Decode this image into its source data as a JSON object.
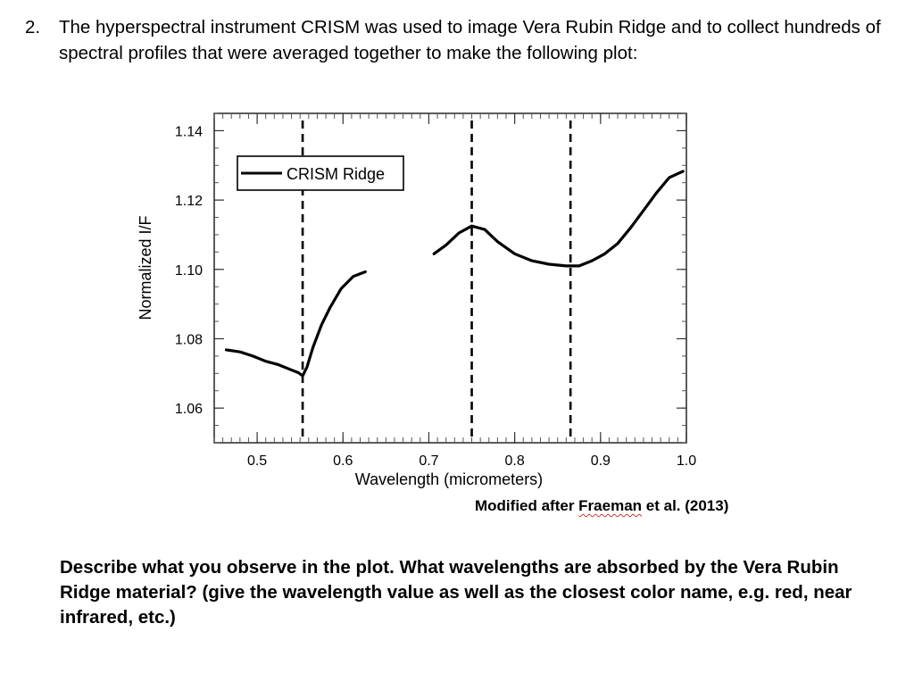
{
  "question": {
    "number": "2.",
    "text": "The hyperspectral instrument CRISM was used to image Vera Rubin Ridge and to collect hundreds of spectral profiles that were averaged together to make the following plot:"
  },
  "chart_data": {
    "type": "line",
    "xlabel": "Wavelength (micrometers)",
    "ylabel": "Normalized I/F",
    "xlim": [
      0.45,
      1.0
    ],
    "ylim": [
      1.05,
      1.145
    ],
    "x_ticks": [
      0.5,
      0.6,
      0.7,
      0.8,
      0.9,
      1.0
    ],
    "x_tick_labels": [
      "0.5",
      "0.6",
      "0.7",
      "0.8",
      "0.9",
      "1.0"
    ],
    "y_ticks": [
      1.06,
      1.08,
      1.1,
      1.12,
      1.14
    ],
    "y_tick_labels": [
      "1.06",
      "1.08",
      "1.10",
      "1.12",
      "1.14"
    ],
    "legend": {
      "entries": [
        "CRISM Ridge"
      ],
      "position": "top-left"
    },
    "grid": false,
    "vertical_dashed_lines": [
      0.553,
      0.75,
      0.865
    ],
    "series": [
      {
        "name": "CRISM Ridge",
        "color": "#000000",
        "segments": [
          {
            "x": [
              0.464,
              0.48,
              0.495,
              0.51,
              0.525,
              0.538,
              0.548,
              0.553,
              0.558,
              0.565,
              0.575,
              0.585,
              0.598,
              0.612,
              0.626
            ],
            "y": [
              1.0768,
              1.0762,
              1.075,
              1.0735,
              1.0725,
              1.0712,
              1.0702,
              1.0693,
              1.0718,
              1.0775,
              1.084,
              1.089,
              1.0945,
              1.098,
              1.0993
            ]
          },
          {
            "x": [
              0.706,
              0.72,
              0.735,
              0.75,
              0.765,
              0.78,
              0.8,
              0.82,
              0.84,
              0.86,
              0.875,
              0.89,
              0.905,
              0.92,
              0.935,
              0.95,
              0.965,
              0.98,
              0.996
            ],
            "y": [
              1.1045,
              1.107,
              1.1105,
              1.1125,
              1.1115,
              1.108,
              1.1045,
              1.1025,
              1.1015,
              1.101,
              1.101,
              1.1025,
              1.1045,
              1.1075,
              1.112,
              1.117,
              1.122,
              1.1265,
              1.1283
            ]
          }
        ]
      }
    ]
  },
  "caption": {
    "prefix": "Modified after ",
    "author": "Fraeman",
    "suffix": " et al. (2013)"
  },
  "prompt": "Describe what you observe in the plot. What wavelengths are absorbed by the Vera Rubin Ridge material? (give the wavelength value as well as the closest color name, e.g. red, near infrared, etc.)"
}
